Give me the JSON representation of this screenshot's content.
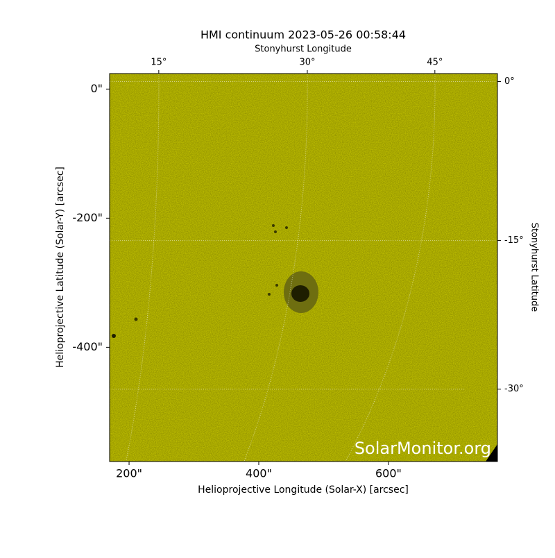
{
  "chart_data": {
    "type": "image",
    "title": "HMI continuum 2023-05-26 00:58:44",
    "xlabel": "Helioprojective Longitude (Solar-X) [arcsec]",
    "ylabel": "Helioprojective Latitude (Solar-Y) [arcsec]",
    "x2label": "Stonyhurst Longitude",
    "y2label": "Stonyhurst Latitude",
    "xlim": [
      170,
      768
    ],
    "ylim": [
      -577,
      24
    ],
    "xticks": [
      {
        "value": 200,
        "label": "200\""
      },
      {
        "value": 400,
        "label": "400\""
      },
      {
        "value": 600,
        "label": "600\""
      }
    ],
    "yticks": [
      {
        "value": 0,
        "label": "0\""
      },
      {
        "value": -200,
        "label": "-200\""
      },
      {
        "value": -400,
        "label": "-400\""
      }
    ],
    "x2ticks": [
      {
        "value": 15,
        "label": "15°"
      },
      {
        "value": 30,
        "label": "30°"
      },
      {
        "value": 45,
        "label": "45°"
      }
    ],
    "y2ticks": [
      {
        "value": 0,
        "label": "0°"
      },
      {
        "value": -15,
        "label": "-15°"
      },
      {
        "value": -30,
        "label": "-30°"
      }
    ],
    "grid": true,
    "color": "#cccc00",
    "watermark": "SolarMonitor.org"
  }
}
